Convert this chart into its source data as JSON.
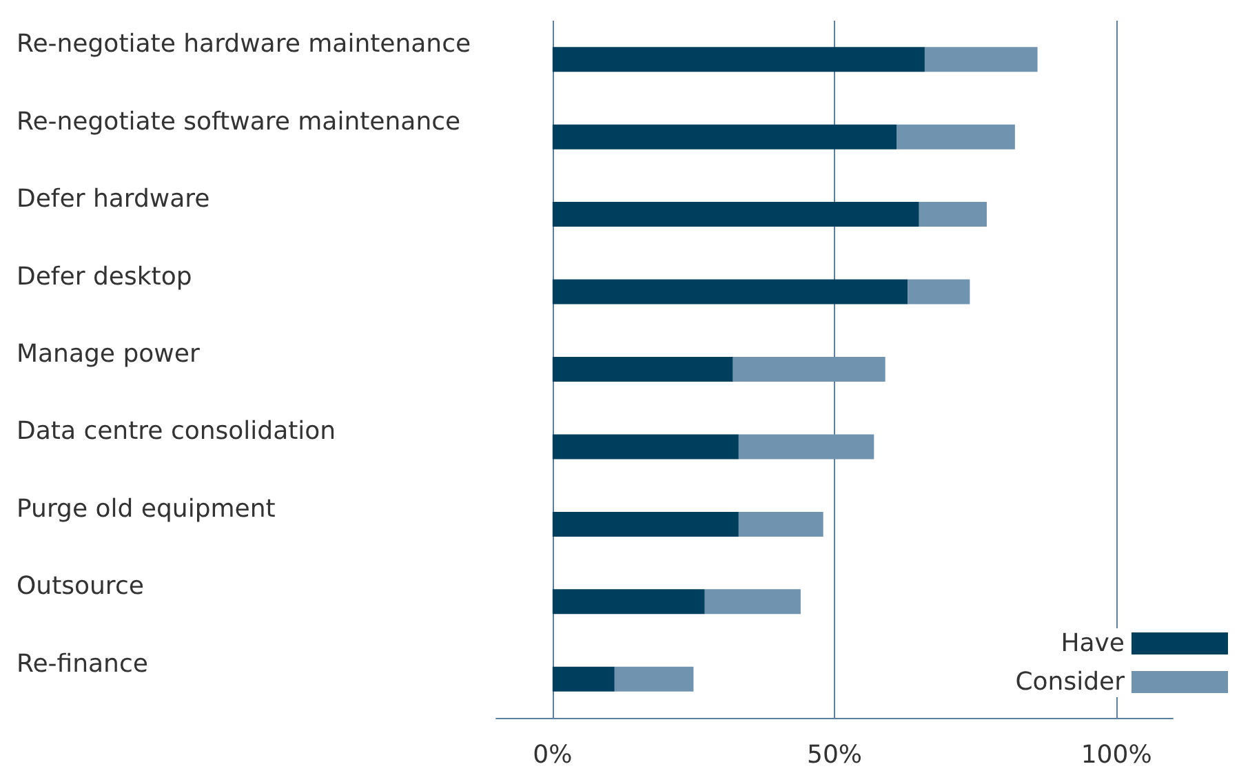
{
  "chart_data": {
    "type": "bar",
    "orientation": "horizontal",
    "stacked": true,
    "categories": [
      "Re-negotiate hardware maintenance",
      "Re-negotiate software maintenance",
      "Defer hardware",
      "Defer desktop",
      "Manage power",
      "Data centre consolidation",
      "Purge old equipment",
      "Outsource",
      "Re-finance"
    ],
    "series": [
      {
        "name": "Have",
        "color": "#003e5e",
        "values": [
          66,
          61,
          65,
          63,
          32,
          33,
          33,
          27,
          11
        ]
      },
      {
        "name": "Consider",
        "color": "#7093b0",
        "values": [
          20,
          21,
          12,
          11,
          27,
          24,
          15,
          17,
          14
        ]
      }
    ],
    "xlim": [
      -10,
      110
    ],
    "xticks": [
      {
        "value": 0,
        "label": "0%"
      },
      {
        "value": 50,
        "label": "50%"
      },
      {
        "value": 100,
        "label": "100%"
      }
    ],
    "grid": "x",
    "legend": "bottom right"
  }
}
